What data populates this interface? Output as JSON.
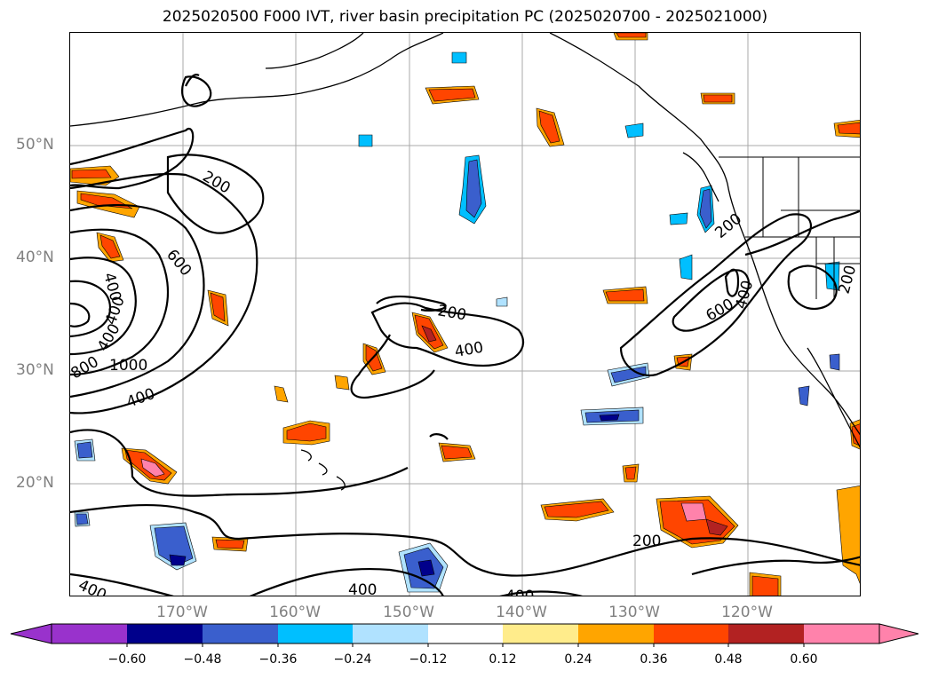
{
  "title": "2025020500 F000 IVT, river basin precipitation PC (2025020700 - 2025021000)",
  "lat_labels": [
    "50°N",
    "40°N",
    "30°N",
    "20°N"
  ],
  "lon_labels": [
    "170°W",
    "160°W",
    "150°W",
    "140°W",
    "130°W",
    "120°W"
  ],
  "contour_labels": [
    "200",
    "600",
    "400",
    "400",
    "400",
    "800",
    "1000",
    "400",
    "200",
    "400",
    "200",
    "600",
    "400",
    "200",
    "200",
    "400",
    "400",
    "400"
  ],
  "colorbar": {
    "extend": "both",
    "bins": [
      {
        "color": "#9932cc",
        "range": "below -0.60"
      },
      {
        "color": "#00008b",
        "range": "-0.60 to -0.48"
      },
      {
        "color": "#3a5fcd",
        "range": "-0.48 to -0.36"
      },
      {
        "color": "#00bfff",
        "range": "-0.36 to -0.24"
      },
      {
        "color": "#b0e2ff",
        "range": "-0.24 to -0.12"
      },
      {
        "color": "#ffffff",
        "range": "-0.12 to 0.12"
      },
      {
        "color": "#ffec8b",
        "range": "0.12 to 0.24"
      },
      {
        "color": "#ffa500",
        "range": "0.24 to 0.36"
      },
      {
        "color": "#ff4500",
        "range": "0.36 to 0.48"
      },
      {
        "color": "#b22222",
        "range": "0.48 to 0.60"
      },
      {
        "color": "#ff82ab",
        "range": "above 0.60"
      }
    ],
    "ticks": [
      "−0.60",
      "−0.48",
      "−0.36",
      "−0.24",
      "−0.12",
      "0.12",
      "0.24",
      "0.36",
      "0.48",
      "0.60"
    ]
  },
  "map": {
    "extent": {
      "lon_min": -180,
      "lon_max": -110,
      "lat_min": 10,
      "lat_max": 60
    },
    "gridlines": true,
    "contour_color": "#000000",
    "coastline_color": "#000000"
  }
}
